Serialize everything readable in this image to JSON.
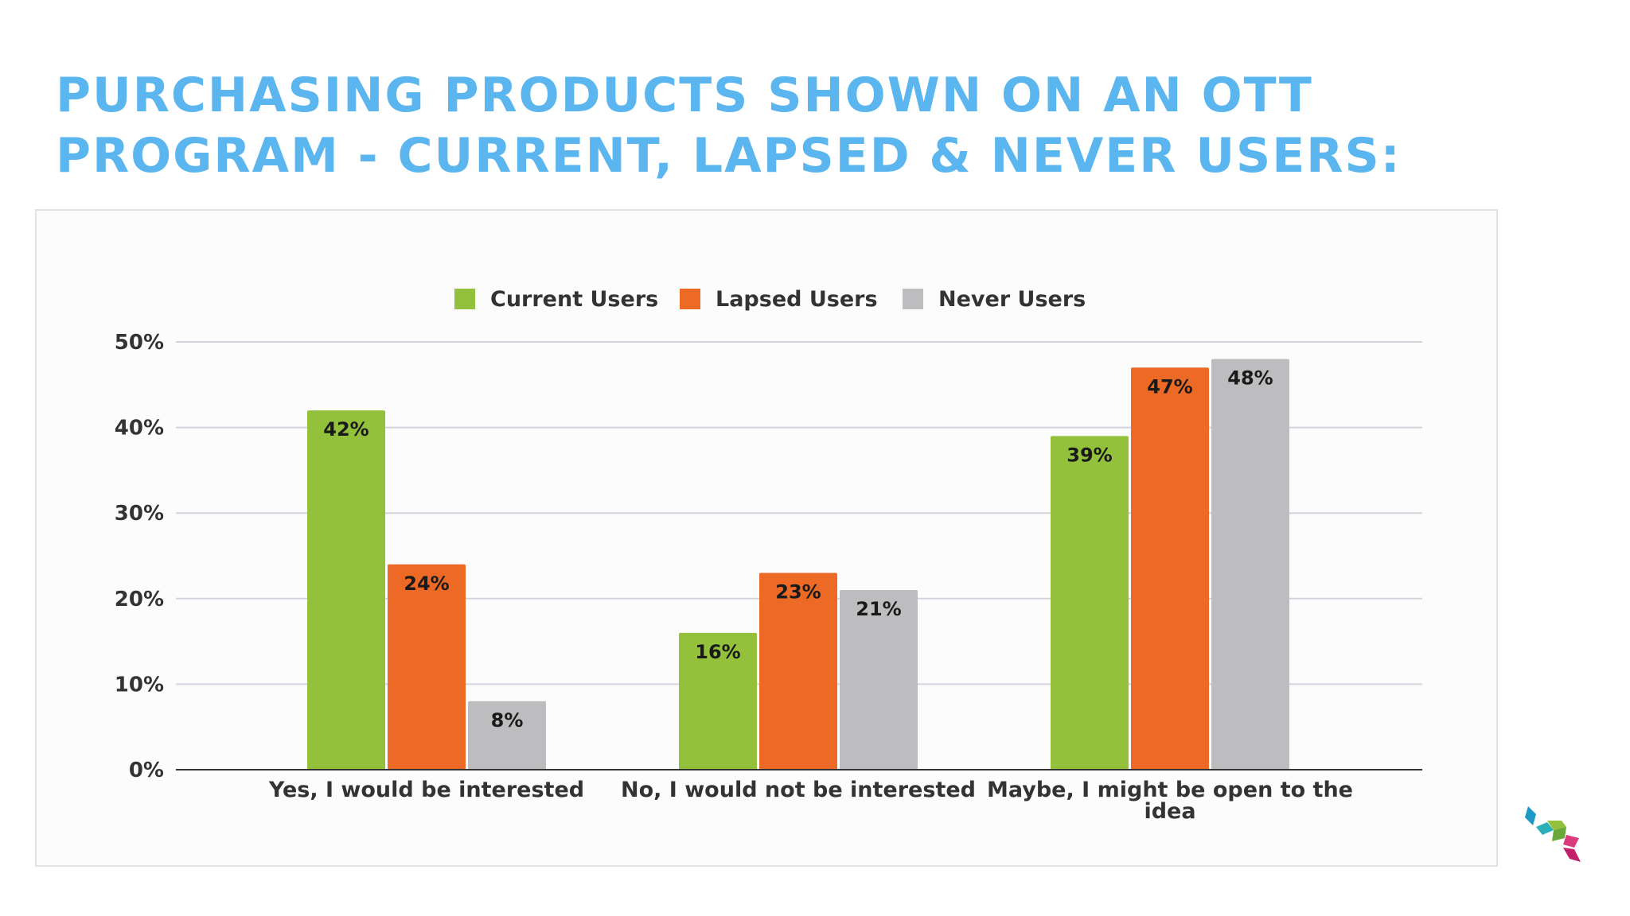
{
  "slide": {
    "title_line1": "PURCHASING PRODUCTS SHOWN ON AN OTT",
    "title_line2": "PROGRAM - CURRENT, LAPSED & NEVER USERS:"
  },
  "colors": {
    "title": "#5bb5ee",
    "current": "#93c13c",
    "lapsed": "#ec6a26",
    "never": "#bdbcbf",
    "grid": "#d6d3dc",
    "axis": "#333333"
  },
  "chart_data": {
    "type": "bar",
    "categories": [
      [
        "Yes, I would be interested"
      ],
      [
        "No, I would not be interested"
      ],
      [
        "Maybe, I might be open to the",
        "idea"
      ]
    ],
    "series": [
      {
        "name": "Current Users",
        "color": "#93c13c",
        "values": [
          42,
          16,
          39
        ],
        "labels": [
          "42%",
          "16%",
          "39%"
        ]
      },
      {
        "name": "Lapsed Users",
        "color": "#ec6a26",
        "values": [
          24,
          23,
          47
        ],
        "labels": [
          "24%",
          "23%",
          "47%"
        ]
      },
      {
        "name": "Never Users",
        "color": "#bdbcbf",
        "values": [
          8,
          21,
          48
        ],
        "labels": [
          "8%",
          "21%",
          "48%"
        ]
      }
    ],
    "yticks": [
      0,
      10,
      20,
      30,
      40,
      50
    ],
    "ytick_labels": [
      "0%",
      "10%",
      "20%",
      "30%",
      "40%",
      "50%"
    ],
    "ylim": [
      0,
      50
    ],
    "grid": true,
    "legend": "top-center",
    "title": "",
    "xlabel": "",
    "ylabel": ""
  },
  "logo": {
    "icon": "cube-chevron-logo-icon"
  }
}
